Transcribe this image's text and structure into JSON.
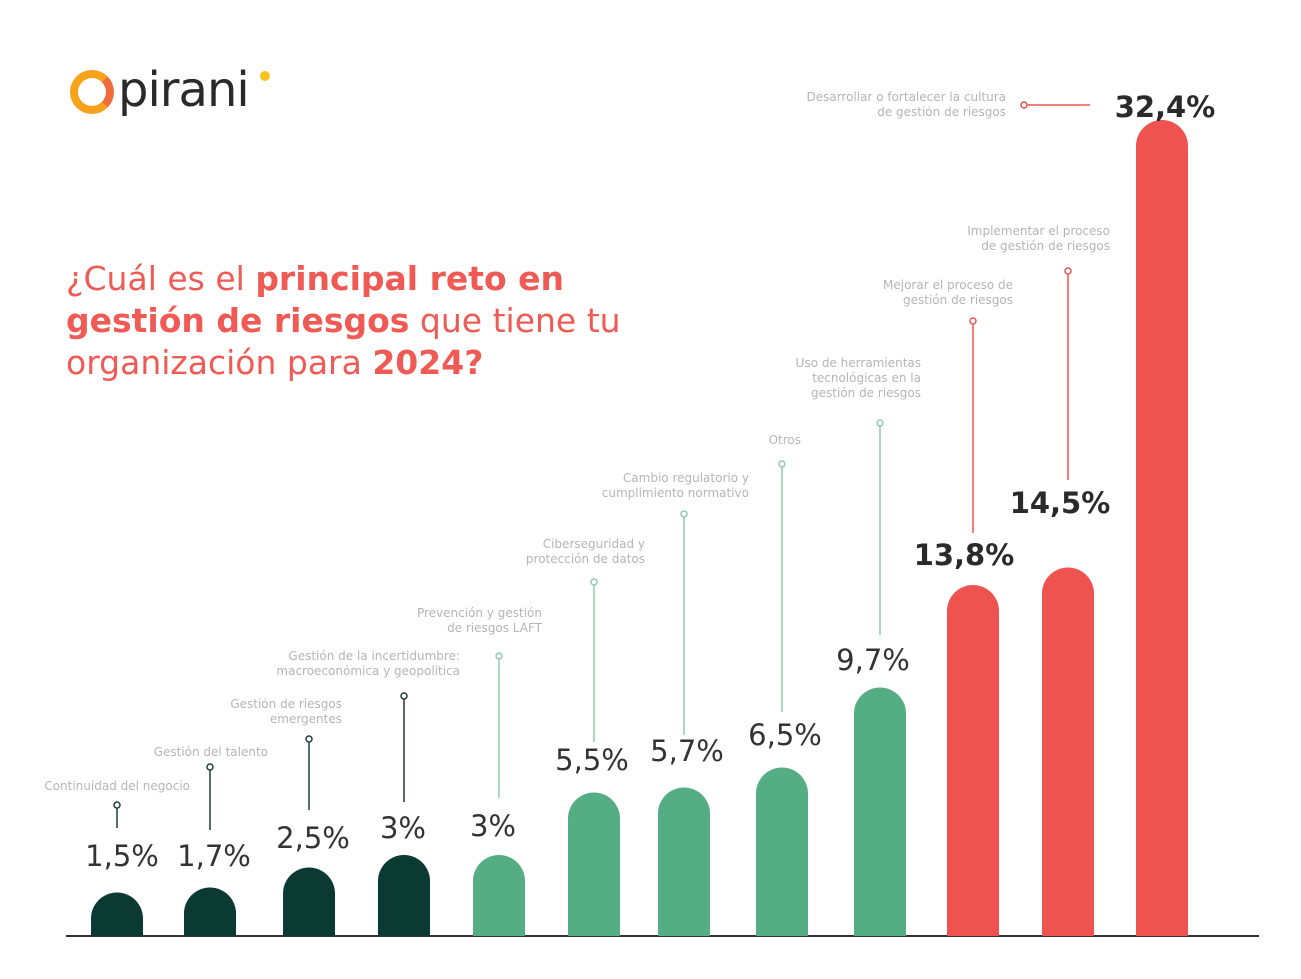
{
  "logo": {
    "text": "pirani"
  },
  "title": {
    "part1": "¿Cuál es el ",
    "bold1": "principal reto en gestión de riesgos",
    "part2": " que tiene tu organización para ",
    "bold2": "2024?"
  },
  "colors": {
    "dark": "#0b3a33",
    "green": "#55ad83",
    "red": "#ef5350",
    "title": "#ef5a55"
  },
  "chart_data": {
    "type": "bar",
    "title": "¿Cuál es el principal reto en gestión de riesgos que tiene tu organización para 2024?",
    "categories": [
      [
        "Continuidad del negocio"
      ],
      [
        "Gestión del talento"
      ],
      [
        "Gestión de riesgos",
        "emergentes"
      ],
      [
        "Gestión de la incertidumbre:",
        "macroeconómica y geopolítica"
      ],
      [
        "Prevención y gestión",
        "de riesgos LAFT"
      ],
      [
        "Ciberseguridad y",
        "protección de datos"
      ],
      [
        "Cambio regulatorio y",
        "cumplimiento normativo"
      ],
      [
        "Otros"
      ],
      [
        "Uso de herramientas",
        "tecnológicas en la",
        "gestión de riesgos"
      ],
      [
        "Mejorar el proceso de",
        "gestión de riesgos"
      ],
      [
        "Implementar el proceso",
        "de gestión de riesgos"
      ],
      [
        "Desarrollar o fortalecer la cultura",
        "de gestión de riesgos"
      ]
    ],
    "values": [
      1.5,
      1.7,
      2.5,
      3,
      3,
      5.5,
      5.7,
      6.5,
      9.7,
      13.8,
      14.5,
      32.4
    ],
    "data_labels": [
      "1,5%",
      "1,7%",
      "2,5%",
      "3%",
      "3%",
      "5,5%",
      "5,7%",
      "6,5%",
      "9,7%",
      "13,8%",
      "14,5%",
      "32,4%"
    ],
    "bar_colors": [
      "dark",
      "dark",
      "dark",
      "dark",
      "green",
      "green",
      "green",
      "green",
      "green",
      "red",
      "red",
      "red"
    ],
    "unit": "%",
    "grid": false,
    "legend": "none"
  }
}
